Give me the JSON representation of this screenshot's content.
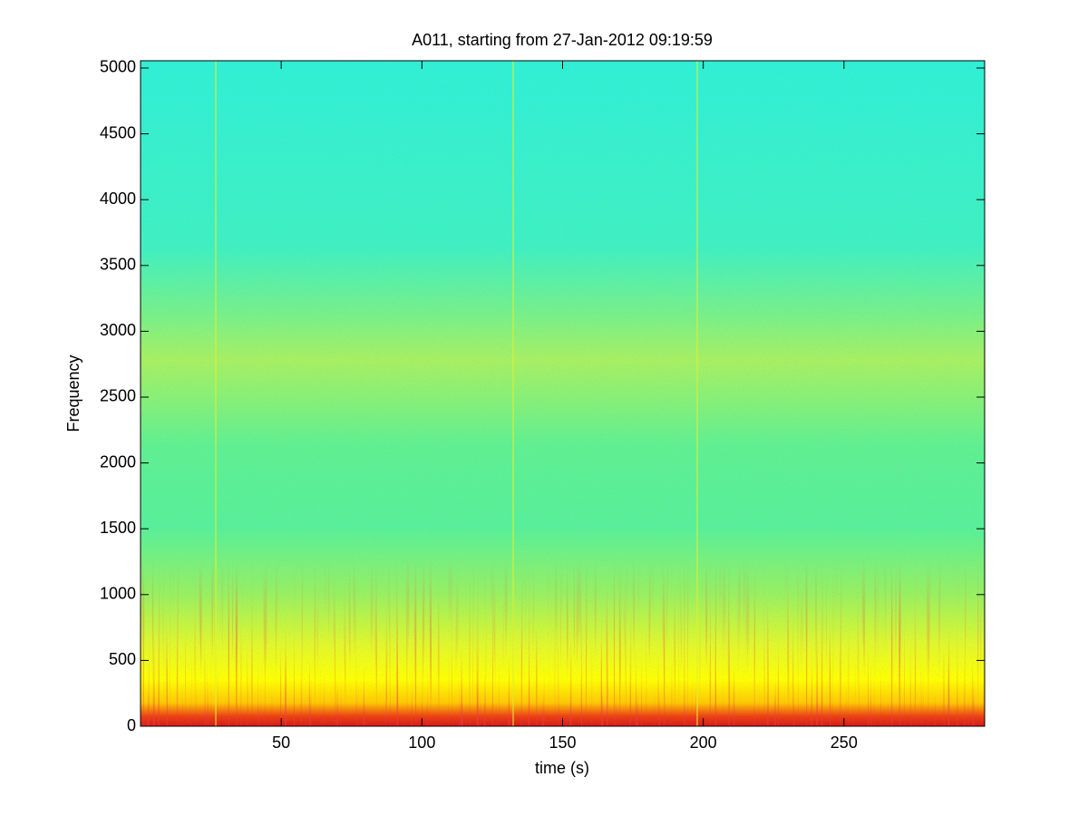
{
  "chart_data": {
    "type": "spectrogram",
    "title": "A011, starting from 27-Jan-2012 09:19:59",
    "x_label": "time (s)",
    "y_label": "Frequency",
    "xlim": [
      0,
      300
    ],
    "xticks": [
      50,
      100,
      150,
      200,
      250
    ],
    "ylim": [
      0,
      5055
    ],
    "yticks": [
      0,
      500,
      1000,
      1500,
      2000,
      2500,
      3000,
      3500,
      4000,
      4500,
      5000
    ]
  }
}
